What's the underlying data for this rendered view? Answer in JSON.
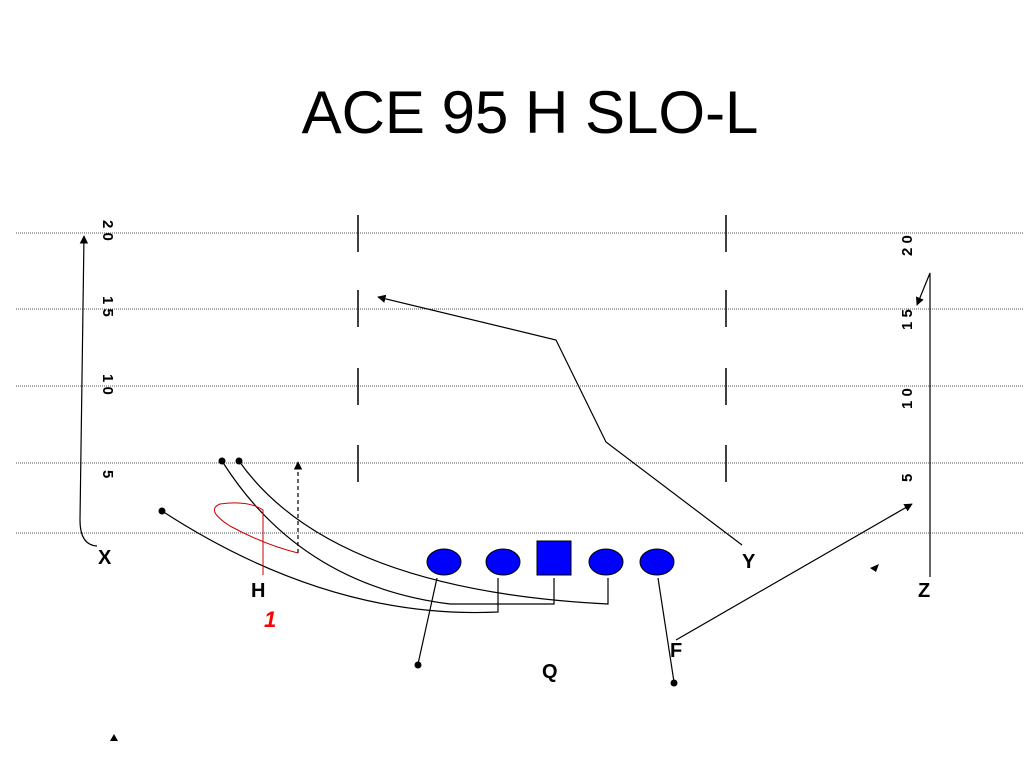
{
  "slide": {
    "title": "ACE 95 H SLO-L"
  },
  "field": {
    "yard_numbers_left": [
      "2 0",
      "1 5",
      "1 0",
      "5"
    ],
    "yard_numbers_right": [
      "2 0",
      "1 5",
      "1 0",
      "5"
    ]
  },
  "players": {
    "x": "X",
    "h": "H",
    "y": "Y",
    "z": "Z",
    "f": "F",
    "q": "Q"
  },
  "read_order": {
    "h": "1"
  },
  "colors": {
    "lineman_fill": "#0000ff",
    "read_number": "#ff0000",
    "route_line": "#000000",
    "h_route": "#cc0000"
  }
}
